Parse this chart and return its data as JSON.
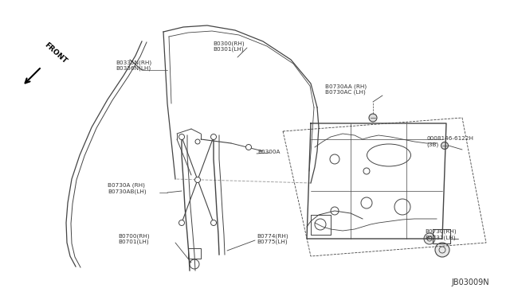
{
  "background_color": "#ffffff",
  "diagram_id": "JB03009N",
  "line_color": "#444444",
  "text_color": "#333333",
  "font_size": 5.5,
  "fig_width": 6.4,
  "fig_height": 3.72,
  "labels": {
    "front": "FRONT",
    "b0335": "B0335N(RH)\nB0336N(LH)",
    "b0300": "B0300(RH)\nB0301(LH)",
    "b0300a": "B0300A",
    "b0730a": "B0730A (RH)\nB0730AB(LH)",
    "b0700": "B0700(RH)\nB0701(LH)",
    "b0774": "B0774(RH)\nB0775(LH)",
    "b0730aa": "B0730AA (RH)\nB0730AC (LH)",
    "b0146": "0008146-6122H\n(3B)",
    "b0730": "B0730(RH)\nB0731(LH)"
  }
}
